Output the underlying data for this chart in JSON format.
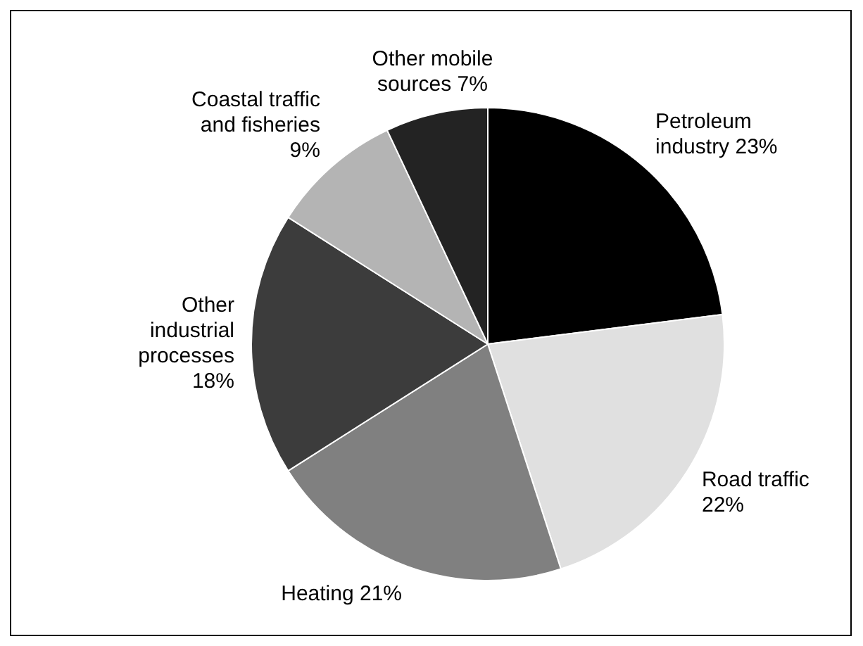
{
  "chart_data": {
    "type": "pie",
    "categories": [
      "Petroleum industry",
      "Road traffic",
      "Heating",
      "Other industrial processes",
      "Coastal traffic and fisheries",
      "Other mobile sources"
    ],
    "values": [
      23,
      22,
      21,
      18,
      9,
      7
    ],
    "value_labels": [
      "23%",
      "22%",
      "21%",
      "18%",
      "9%",
      "7%"
    ],
    "colors": [
      "#000000",
      "#e0e0e0",
      "#808080",
      "#3c3c3c",
      "#b4b4b4",
      "#232323"
    ],
    "legend": false
  }
}
